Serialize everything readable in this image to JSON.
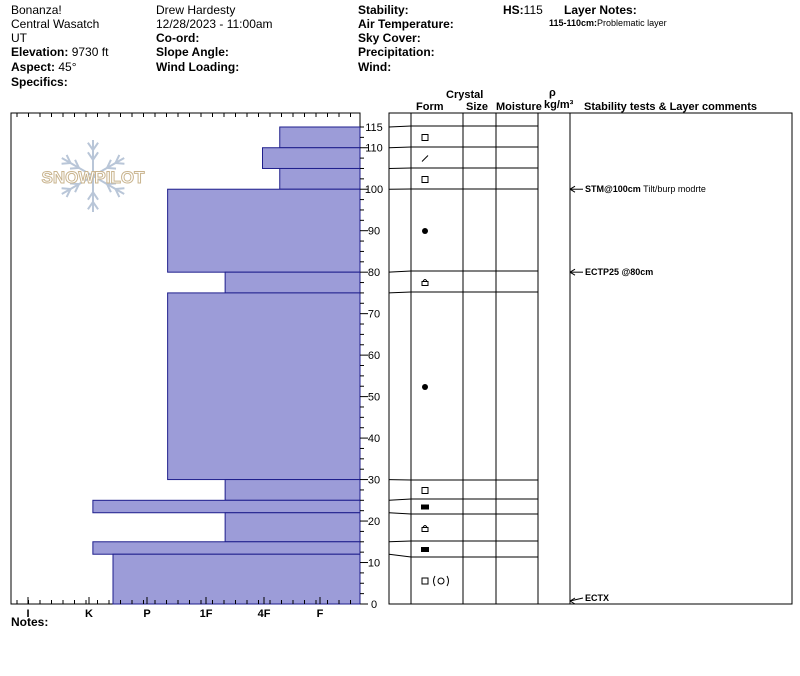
{
  "header": {
    "location_name": "Bonanza!",
    "range": "Central Wasatch",
    "state": "UT",
    "elevation_label": "Elevation:",
    "elevation_value": "9730 ft",
    "aspect_label": "Aspect:",
    "aspect_value": "45°",
    "specifics_label": "Specifics:",
    "observer": "Drew Hardesty",
    "datetime": "12/28/2023 - 11:00am",
    "coord_label": "Co-ord:",
    "slope_label": "Slope Angle:",
    "wind_loading_label": "Wind Loading:",
    "stability_label": "Stability:",
    "air_temp_label": "Air Temperature:",
    "sky_label": "Sky Cover:",
    "precip_label": "Precipitation:",
    "wind_label": "Wind:",
    "hs_label": "HS:",
    "hs_value": "115",
    "layer_notes_label": "Layer Notes:",
    "layer_note_range": "115-110cm:",
    "layer_note_text": "Problematic layer"
  },
  "logo": {
    "text": "SNOWPILOT"
  },
  "columns": {
    "crystal": "Crystal",
    "form": "Form",
    "size": "Size",
    "moisture": "Moisture",
    "rho": "ρ",
    "density_unit": "kg/m³",
    "stability_comments": "Stability tests & Layer comments"
  },
  "hardness_scale": [
    "I",
    "K",
    "P",
    "1F",
    "4F",
    "F"
  ],
  "depth_ticks": [
    "0",
    "10",
    "20",
    "30",
    "40",
    "50",
    "60",
    "70",
    "80",
    "90",
    "100",
    "110",
    "115"
  ],
  "notes_label": "Notes:",
  "chart_data": {
    "type": "snow_profile",
    "ylim": [
      0,
      115
    ],
    "hardness_index_note": "0=F, 1=4F, 2=1F, 3=P, 4=K, 5=I",
    "layers": [
      {
        "top": 115,
        "bottom": 110,
        "hardness": 0.7,
        "form": "square"
      },
      {
        "top": 110,
        "bottom": 105,
        "hardness": 1.0,
        "form": "slash"
      },
      {
        "top": 105,
        "bottom": 100,
        "hardness": 0.7,
        "form": "square"
      },
      {
        "top": 100,
        "bottom": 80,
        "hardness": 2.65,
        "form": "dot"
      },
      {
        "top": 80,
        "bottom": 75,
        "hardness": 1.65,
        "form": "grain_small"
      },
      {
        "top": 75,
        "bottom": 30,
        "hardness": 2.65,
        "form": "dot"
      },
      {
        "top": 30,
        "bottom": 25,
        "hardness": 1.65,
        "form": "square"
      },
      {
        "top": 25,
        "bottom": 22,
        "hardness": 3.95,
        "form": "filled_rect"
      },
      {
        "top": 22,
        "bottom": 15,
        "hardness": 1.65,
        "form": "grain_small"
      },
      {
        "top": 15,
        "bottom": 12,
        "hardness": 3.95,
        "form": "filled_rect"
      },
      {
        "top": 12,
        "bottom": 0,
        "hardness": 3.6,
        "form": "square_paren"
      }
    ],
    "stability_tests": [
      {
        "depth": 100,
        "label_bold": "STM@100cm",
        "label": "Tilt/burp modrte"
      },
      {
        "depth": 80,
        "label_bold": "ECTP25 @80cm",
        "label": ""
      },
      {
        "depth": 0,
        "label_bold": "ECTX",
        "label": ""
      }
    ],
    "colors": {
      "layer_fill": "#9c9cd8",
      "layer_stroke": "#1e1e8c",
      "logo": "#b9c6d8"
    }
  }
}
